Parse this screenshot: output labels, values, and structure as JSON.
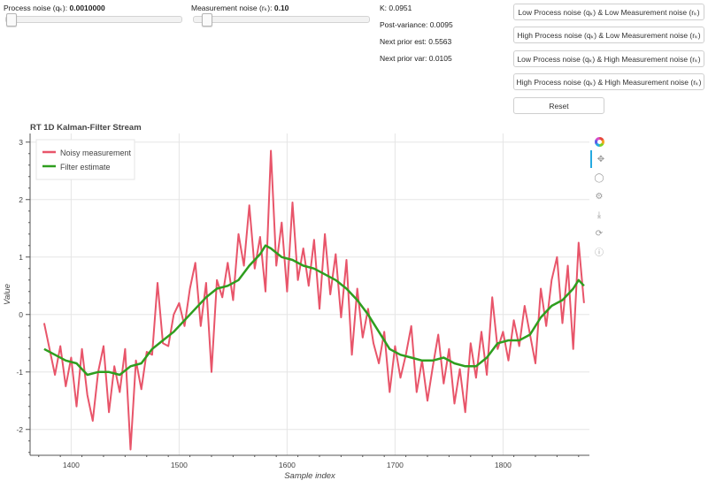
{
  "controls": {
    "process_noise": {
      "label": "Process noise (qₖ):",
      "value": "0.0010000",
      "fraction": 0.0
    },
    "measurement_noise": {
      "label": "Measurement noise (rₖ):",
      "value": "0.10",
      "fraction": 0.05
    }
  },
  "stats": {
    "k": "K: 0.0951",
    "post_variance": "Post-variance: 0.0095",
    "next_prior_est": "Next prior est: 0.5563",
    "next_prior_var": "Next prior var: 0.0105"
  },
  "buttons": {
    "low_low": "Low Process noise (qₖ) & Low Measurement noise (rₖ)",
    "high_low": "High Process noise (qₖ) & Low Measurement noise (rₖ)",
    "low_high": "Low Process noise (qₖ) & High Measurement noise (rₖ)",
    "high_high": "High Process noise (qₖ) & High Measurement noise (rₖ)",
    "reset": "Reset"
  },
  "toolbar": {
    "icons": [
      "bokeh-logo-icon",
      "pan-icon",
      "box-zoom-icon",
      "wheel-zoom-icon",
      "save-icon",
      "reset-icon",
      "help-icon"
    ]
  },
  "chart_data": {
    "type": "line",
    "title": "RT 1D Kalman-Filter Stream",
    "xlabel": "Sample index",
    "ylabel": "Value",
    "xlim": [
      1362,
      1880
    ],
    "ylim": [
      -2.45,
      3.15
    ],
    "x_ticks": [
      1400,
      1500,
      1600,
      1700,
      1800
    ],
    "y_ticks": [
      -2,
      -1,
      0,
      1,
      2,
      3
    ],
    "grid": true,
    "legend": "top-left",
    "series": [
      {
        "name": "Noisy measurement",
        "color": "#e8556a",
        "x": [
          1375,
          1380,
          1385,
          1390,
          1395,
          1400,
          1405,
          1410,
          1415,
          1420,
          1425,
          1430,
          1435,
          1440,
          1445,
          1450,
          1455,
          1460,
          1465,
          1470,
          1475,
          1480,
          1485,
          1490,
          1495,
          1500,
          1505,
          1510,
          1515,
          1520,
          1525,
          1530,
          1535,
          1540,
          1545,
          1550,
          1555,
          1560,
          1565,
          1570,
          1575,
          1580,
          1585,
          1590,
          1595,
          1600,
          1605,
          1610,
          1615,
          1620,
          1625,
          1630,
          1635,
          1640,
          1645,
          1650,
          1655,
          1660,
          1665,
          1670,
          1675,
          1680,
          1685,
          1690,
          1695,
          1700,
          1705,
          1710,
          1715,
          1720,
          1725,
          1730,
          1735,
          1740,
          1745,
          1750,
          1755,
          1760,
          1765,
          1770,
          1775,
          1780,
          1785,
          1790,
          1795,
          1800,
          1805,
          1810,
          1815,
          1820,
          1825,
          1830,
          1835,
          1840,
          1845,
          1850,
          1855,
          1860,
          1865,
          1870,
          1875
        ],
        "y": [
          -0.15,
          -0.6,
          -1.05,
          -0.55,
          -1.25,
          -0.75,
          -1.6,
          -0.6,
          -1.4,
          -1.85,
          -1.0,
          -0.55,
          -1.7,
          -0.9,
          -1.35,
          -0.6,
          -2.35,
          -0.8,
          -1.3,
          -0.65,
          -0.7,
          0.55,
          -0.5,
          -0.55,
          0.0,
          0.2,
          -0.2,
          0.45,
          0.9,
          -0.2,
          0.55,
          -1.0,
          0.6,
          0.3,
          0.9,
          0.25,
          1.4,
          0.85,
          1.9,
          0.8,
          1.35,
          0.4,
          2.85,
          0.85,
          1.6,
          0.4,
          1.95,
          0.6,
          1.15,
          0.5,
          1.3,
          0.1,
          1.4,
          0.35,
          1.05,
          -0.05,
          0.95,
          -0.7,
          0.45,
          -0.4,
          0.1,
          -0.5,
          -0.85,
          -0.3,
          -1.35,
          -0.55,
          -1.1,
          -0.7,
          -0.2,
          -1.35,
          -0.8,
          -1.5,
          -0.9,
          -0.35,
          -1.2,
          -0.6,
          -1.55,
          -0.95,
          -1.7,
          -0.5,
          -1.1,
          -0.3,
          -1.05,
          0.3,
          -0.6,
          -0.3,
          -0.8,
          -0.1,
          -0.55,
          0.15,
          -0.35,
          -0.85,
          0.45,
          -0.2,
          0.6,
          1.0,
          -0.15,
          0.85,
          -0.6,
          1.25,
          0.2
        ]
      },
      {
        "name": "Filter estimate",
        "color": "#2e9e1e",
        "x": [
          1375,
          1385,
          1395,
          1405,
          1415,
          1425,
          1435,
          1445,
          1455,
          1465,
          1475,
          1485,
          1495,
          1505,
          1515,
          1525,
          1535,
          1545,
          1555,
          1565,
          1575,
          1580,
          1585,
          1595,
          1605,
          1615,
          1625,
          1635,
          1645,
          1655,
          1665,
          1675,
          1685,
          1695,
          1705,
          1715,
          1725,
          1735,
          1745,
          1755,
          1765,
          1775,
          1785,
          1795,
          1805,
          1815,
          1825,
          1835,
          1845,
          1855,
          1865,
          1870,
          1875
        ],
        "y": [
          -0.6,
          -0.7,
          -0.8,
          -0.85,
          -1.05,
          -1.0,
          -1.0,
          -1.05,
          -0.9,
          -0.85,
          -0.6,
          -0.45,
          -0.3,
          -0.1,
          0.1,
          0.3,
          0.45,
          0.5,
          0.6,
          0.85,
          1.05,
          1.2,
          1.15,
          1.0,
          0.95,
          0.85,
          0.8,
          0.7,
          0.6,
          0.45,
          0.25,
          0.0,
          -0.3,
          -0.6,
          -0.7,
          -0.75,
          -0.8,
          -0.8,
          -0.75,
          -0.85,
          -0.9,
          -0.9,
          -0.75,
          -0.5,
          -0.45,
          -0.45,
          -0.35,
          -0.05,
          0.15,
          0.25,
          0.45,
          0.6,
          0.5
        ]
      }
    ]
  }
}
